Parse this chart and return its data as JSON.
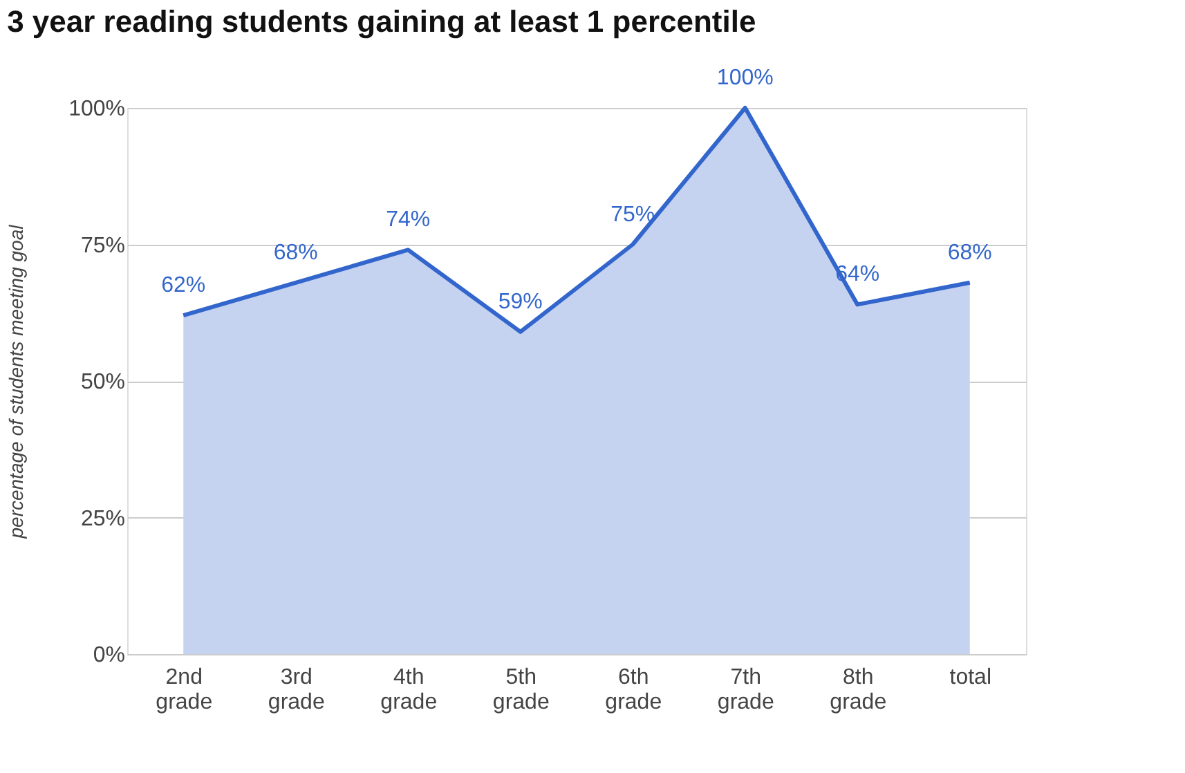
{
  "chart_data": {
    "type": "area",
    "title": "3 year reading students gaining at least 1 percentile",
    "ylabel": "percentage of students meeting goal",
    "categories": [
      "2nd grade",
      "3rd grade",
      "4th grade",
      "5th grade",
      "6th grade",
      "7th grade",
      "8th grade",
      "total"
    ],
    "series": [
      {
        "color": "#3366cc",
        "values": [
          62,
          68,
          74,
          59,
          75,
          100,
          64,
          68
        ],
        "value_labels": [
          "62%",
          "68%",
          "74%",
          "59%",
          "75%",
          "100%",
          "64%",
          "68%"
        ]
      }
    ],
    "ylim": [
      0,
      100
    ],
    "yticks": [
      {
        "value": 0,
        "label": "0%"
      },
      {
        "value": 25,
        "label": "25%"
      },
      {
        "value": 50,
        "label": "50%"
      },
      {
        "value": 75,
        "label": "75%"
      },
      {
        "value": 100,
        "label": "100%"
      }
    ],
    "grid": "y"
  }
}
